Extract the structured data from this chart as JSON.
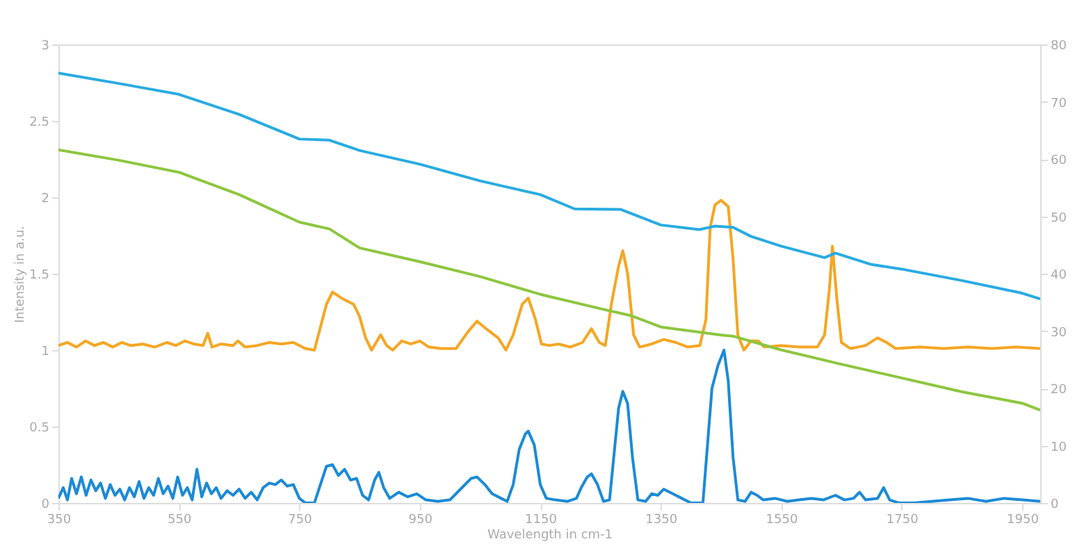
{
  "chart_data": {
    "type": "line",
    "xlabel": "Wavelength in cm-1",
    "ylabel": "Intensity in a.u.",
    "xlim": [
      350,
      1980
    ],
    "xticks": [
      350,
      550,
      750,
      950,
      1150,
      1350,
      1550,
      1750,
      1950
    ],
    "ylim": [
      0,
      3
    ],
    "yticks": [
      0,
      0.5,
      1,
      1.5,
      2,
      2.5,
      3
    ],
    "y2lim": [
      0,
      80
    ],
    "y2ticks": [
      0,
      10,
      20,
      30,
      40,
      50,
      60,
      70,
      80
    ],
    "grid": false,
    "marker": "none",
    "line_style": "solid",
    "series": [
      {
        "color": "#29abe2",
        "axis": "y2",
        "x": [
          350,
          450,
          550,
          650,
          750,
          800,
          850,
          950,
          1050,
          1150,
          1207,
          1284,
          1350,
          1414,
          1440,
          1470,
          1500,
          1550,
          1622,
          1640,
          1700,
          1750,
          1850,
          1950,
          1980
        ],
        "values": [
          75.0,
          73.2,
          71.3,
          67.8,
          63.5,
          63.3,
          61.5,
          59.1,
          56.2,
          53.8,
          51.3,
          51.2,
          48.5,
          47.7,
          48.3,
          48.1,
          46.5,
          44.8,
          42.8,
          43.6,
          41.6,
          40.8,
          38.8,
          36.6,
          35.6
        ]
      },
      {
        "color": "#8dc63f",
        "axis": "y2",
        "x": [
          350,
          450,
          550,
          650,
          750,
          800,
          850,
          950,
          1050,
          1150,
          1250,
          1300,
          1350,
          1450,
          1470,
          1550,
          1650,
          1750,
          1850,
          1950,
          1980
        ],
        "values": [
          61.6,
          59.8,
          57.7,
          53.8,
          49.0,
          47.8,
          44.5,
          42.1,
          39.5,
          36.4,
          33.9,
          32.7,
          30.7,
          29.3,
          29.1,
          26.7,
          24.2,
          21.8,
          19.4,
          17.4,
          16.2
        ]
      },
      {
        "color": "#f5a623",
        "x": [
          350,
          365,
          380,
          395,
          410,
          425,
          440,
          455,
          470,
          490,
          510,
          530,
          545,
          560,
          575,
          590,
          598,
          605,
          620,
          640,
          648,
          660,
          680,
          700,
          720,
          740,
          760,
          775,
          785,
          795,
          805,
          820,
          840,
          850,
          860,
          870,
          885,
          895,
          905,
          920,
          935,
          950,
          965,
          985,
          1010,
          1030,
          1045,
          1060,
          1080,
          1093,
          1105,
          1120,
          1130,
          1142,
          1152,
          1165,
          1180,
          1200,
          1220,
          1235,
          1248,
          1258,
          1268,
          1280,
          1287,
          1295,
          1305,
          1315,
          1335,
          1355,
          1375,
          1395,
          1415,
          1425,
          1432,
          1440,
          1450,
          1462,
          1470,
          1478,
          1488,
          1500,
          1512,
          1522,
          1550,
          1580,
          1610,
          1622,
          1630,
          1635,
          1642,
          1650,
          1665,
          1690,
          1710,
          1725,
          1740,
          1780,
          1820,
          1860,
          1900,
          1940,
          1980
        ],
        "values": [
          1.03,
          1.05,
          1.02,
          1.06,
          1.03,
          1.05,
          1.02,
          1.05,
          1.03,
          1.04,
          1.02,
          1.05,
          1.03,
          1.06,
          1.04,
          1.03,
          1.11,
          1.02,
          1.04,
          1.03,
          1.06,
          1.02,
          1.03,
          1.05,
          1.04,
          1.05,
          1.01,
          1.0,
          1.15,
          1.3,
          1.38,
          1.34,
          1.3,
          1.22,
          1.08,
          1.0,
          1.1,
          1.03,
          1.0,
          1.06,
          1.04,
          1.06,
          1.02,
          1.01,
          1.01,
          1.12,
          1.19,
          1.14,
          1.08,
          1.0,
          1.1,
          1.3,
          1.34,
          1.2,
          1.04,
          1.03,
          1.04,
          1.02,
          1.05,
          1.14,
          1.05,
          1.03,
          1.3,
          1.55,
          1.65,
          1.5,
          1.1,
          1.02,
          1.04,
          1.07,
          1.05,
          1.02,
          1.03,
          1.2,
          1.8,
          1.95,
          1.98,
          1.94,
          1.6,
          1.1,
          1.0,
          1.06,
          1.06,
          1.02,
          1.03,
          1.02,
          1.02,
          1.1,
          1.4,
          1.68,
          1.35,
          1.05,
          1.01,
          1.03,
          1.08,
          1.05,
          1.01,
          1.02,
          1.01,
          1.02,
          1.01,
          1.02,
          1.01
        ]
      },
      {
        "color": "#1b8ad6",
        "x": [
          350,
          358,
          365,
          372,
          380,
          388,
          396,
          404,
          412,
          420,
          428,
          436,
          444,
          452,
          460,
          468,
          476,
          484,
          492,
          500,
          508,
          516,
          524,
          532,
          540,
          548,
          556,
          564,
          572,
          580,
          588,
          596,
          604,
          612,
          620,
          630,
          640,
          650,
          660,
          670,
          680,
          690,
          700,
          710,
          720,
          730,
          740,
          750,
          760,
          775,
          785,
          795,
          805,
          815,
          825,
          835,
          845,
          855,
          865,
          875,
          882,
          890,
          900,
          915,
          930,
          945,
          960,
          980,
          1000,
          1020,
          1035,
          1045,
          1058,
          1070,
          1085,
          1095,
          1105,
          1115,
          1125,
          1130,
          1140,
          1150,
          1160,
          1175,
          1195,
          1210,
          1218,
          1228,
          1235,
          1245,
          1255,
          1265,
          1272,
          1280,
          1287,
          1295,
          1303,
          1312,
          1325,
          1335,
          1345,
          1355,
          1370,
          1385,
          1400,
          1420,
          1428,
          1435,
          1445,
          1455,
          1462,
          1470,
          1478,
          1490,
          1500,
          1510,
          1520,
          1540,
          1560,
          1580,
          1600,
          1620,
          1640,
          1655,
          1670,
          1680,
          1690,
          1710,
          1720,
          1730,
          1745,
          1770,
          1800,
          1830,
          1860,
          1890,
          1920,
          1950,
          1980
        ],
        "values": [
          0.03,
          0.1,
          0.02,
          0.16,
          0.06,
          0.17,
          0.05,
          0.15,
          0.08,
          0.13,
          0.03,
          0.12,
          0.05,
          0.09,
          0.02,
          0.1,
          0.04,
          0.14,
          0.03,
          0.1,
          0.05,
          0.16,
          0.06,
          0.11,
          0.03,
          0.17,
          0.05,
          0.1,
          0.02,
          0.22,
          0.04,
          0.13,
          0.06,
          0.1,
          0.03,
          0.08,
          0.05,
          0.09,
          0.03,
          0.07,
          0.02,
          0.1,
          0.13,
          0.12,
          0.15,
          0.11,
          0.12,
          0.03,
          0.0,
          0.0,
          0.12,
          0.24,
          0.25,
          0.18,
          0.22,
          0.15,
          0.16,
          0.05,
          0.02,
          0.15,
          0.2,
          0.1,
          0.03,
          0.07,
          0.04,
          0.06,
          0.02,
          0.01,
          0.02,
          0.1,
          0.16,
          0.17,
          0.12,
          0.06,
          0.03,
          0.01,
          0.12,
          0.35,
          0.45,
          0.47,
          0.38,
          0.12,
          0.03,
          0.02,
          0.01,
          0.03,
          0.1,
          0.17,
          0.19,
          0.12,
          0.01,
          0.02,
          0.3,
          0.62,
          0.73,
          0.65,
          0.3,
          0.02,
          0.01,
          0.06,
          0.05,
          0.09,
          0.06,
          0.03,
          0.0,
          0.0,
          0.4,
          0.75,
          0.9,
          1.0,
          0.8,
          0.3,
          0.02,
          0.01,
          0.07,
          0.05,
          0.02,
          0.03,
          0.01,
          0.02,
          0.03,
          0.02,
          0.05,
          0.02,
          0.03,
          0.07,
          0.02,
          0.03,
          0.1,
          0.02,
          0.0,
          0.0,
          0.01,
          0.02,
          0.03,
          0.01,
          0.03,
          0.02,
          0.01
        ]
      }
    ]
  }
}
